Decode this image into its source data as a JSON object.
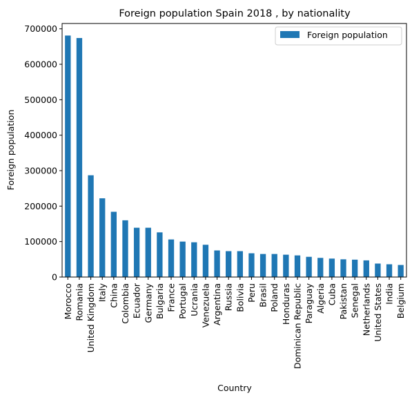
{
  "chart_data": {
    "type": "bar",
    "title": "Foreign population Spain 2018 , by nationality",
    "xlabel": "Country",
    "ylabel": "Foreign population",
    "legend": {
      "placement": "top-right",
      "entries": [
        "Foreign population"
      ]
    },
    "grid": false,
    "ylim": [
      0,
      715000
    ],
    "yticks": [
      0,
      100000,
      200000,
      300000,
      400000,
      500000,
      600000,
      700000
    ],
    "ytick_labels": [
      "0",
      "100000",
      "200000",
      "300000",
      "400000",
      "500000",
      "600000",
      "700000"
    ],
    "color": "#1f77b4",
    "categories": [
      "Morocco",
      "Romania",
      "United Kingdom",
      "Italy",
      "China",
      "Colombia",
      "Ecuador",
      "Germany",
      "Bulgaria",
      "France",
      "Portugal",
      "Ucrania",
      "Venezuela",
      "Argentina",
      "Russia",
      "Bolivia",
      "Peru",
      "Brasil",
      "Poland",
      "Honduras",
      "Dominican Republic",
      "Paraguay",
      "Algeria",
      "Cuba",
      "Pakistan",
      "Senegal",
      "Netherlands",
      "United States",
      "India",
      "Belgium"
    ],
    "series": [
      {
        "name": "Foreign population",
        "values": [
          681000,
          674000,
          287000,
          222000,
          184000,
          160000,
          139000,
          139000,
          126000,
          106000,
          100000,
          98000,
          91000,
          75000,
          73000,
          73000,
          67000,
          65000,
          65000,
          63000,
          61000,
          57000,
          54000,
          52000,
          50000,
          49000,
          47000,
          38000,
          36000,
          34000
        ]
      }
    ]
  }
}
